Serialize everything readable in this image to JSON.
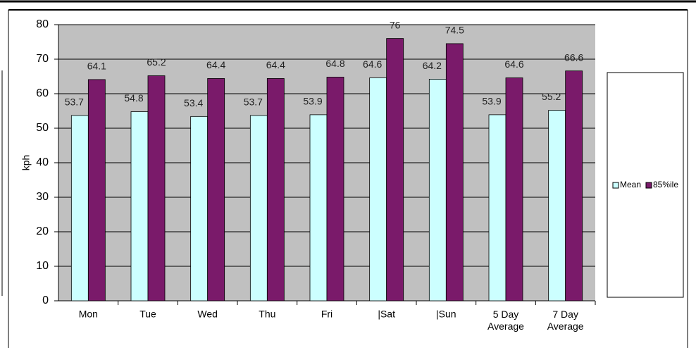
{
  "chart_data": {
    "type": "bar",
    "y_label": "kph",
    "categories": [
      "Mon",
      "Tue",
      "Wed",
      "Thu",
      "Fri",
      "|Sat",
      "|Sun",
      "5 Day Average",
      "7 Day Average"
    ],
    "series": [
      {
        "name": "Mean",
        "color": "#ccffff",
        "values": [
          53.7,
          54.8,
          53.4,
          53.7,
          53.9,
          64.6,
          64.2,
          53.9,
          55.2
        ]
      },
      {
        "name": "85%ile",
        "color": "#7a1a6a",
        "values": [
          64.1,
          65.2,
          64.4,
          64.4,
          64.8,
          76,
          74.5,
          64.6,
          66.6
        ]
      }
    ],
    "ylim": [
      0,
      80
    ],
    "yticks": [
      0,
      10,
      20,
      30,
      40,
      50,
      60,
      70,
      80
    ],
    "grid": true,
    "legend": "right"
  }
}
